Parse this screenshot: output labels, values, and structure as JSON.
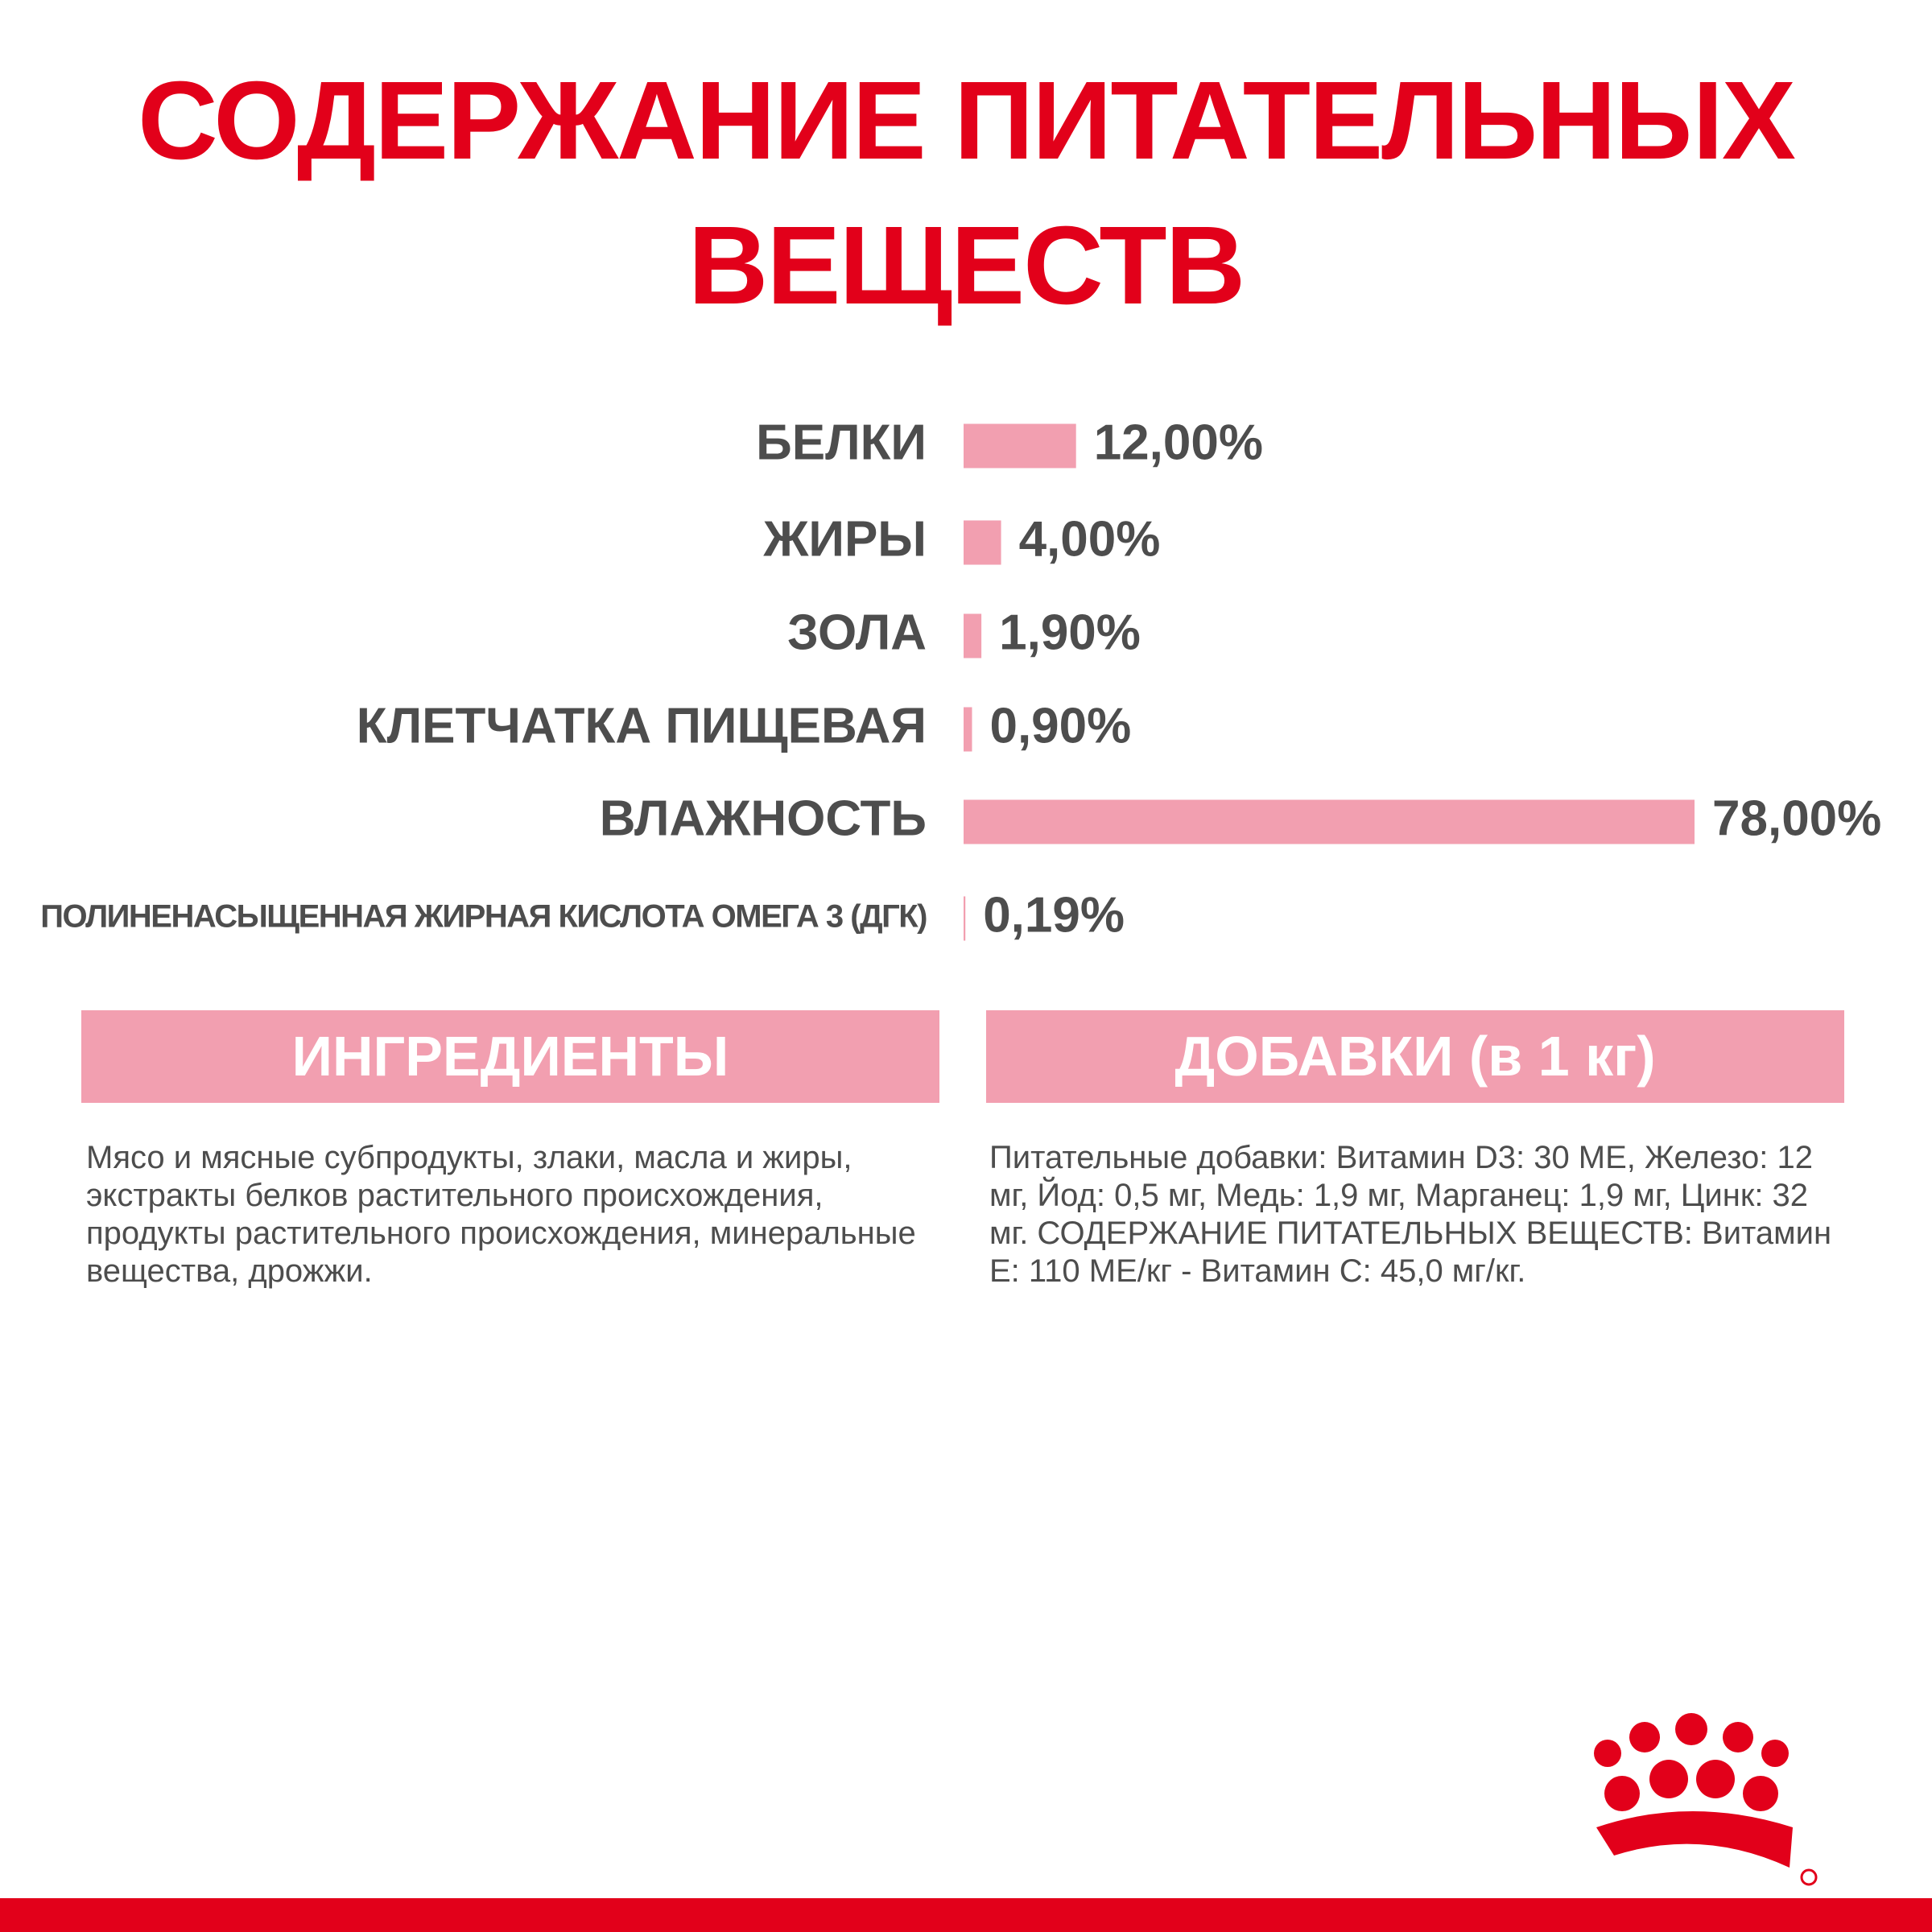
{
  "chart_data": {
    "type": "bar",
    "orientation": "horizontal",
    "title": "СОДЕРЖАНИЕ ПИТАТЕЛЬНЫХ ВЕЩЕСТВ",
    "categories": [
      "БЕЛКИ",
      "ЖИРЫ",
      "ЗОЛА",
      "КЛЕТЧАТКА ПИЩЕВАЯ",
      "ВЛАЖНОСТЬ",
      "ПОЛИНЕНАСЫЩЕННАЯ ЖИРНАЯ КИСЛОТА ОМЕГА 3 (ДГК)"
    ],
    "values": [
      12,
      4,
      1.9,
      0.9,
      78,
      0.19
    ],
    "value_labels": [
      "12,00%",
      "4,00%",
      "1,90%",
      "0,90%",
      "78,00%",
      "0,19%"
    ],
    "color": "#f29fb0"
  },
  "sections": [
    {
      "heading": "ИНГРЕДИЕНТЫ",
      "text": "Мясо и мясные субпродукты, злаки, масла и жиры, экстракты белков растительного происхождения, продукты растительного происхождения, минеральные вещества, дрожжи."
    },
    {
      "heading": "ДОБАВКИ (в 1 кг)",
      "text": "Питательные добавки: Витамин D3: 30 МЕ, Железо: 12 мг, Йод: 0,5 мг, Медь: 1,9 мг, Марганец: 1,9 мг, Цинк: 32 мг. СОДЕРЖАНИЕ ПИТАТЕЛЬНЫХ ВЕЩЕСТВ: Витамин Е: 110 МЕ/кг - Витамин С: 45,0 мг/кг."
    }
  ]
}
